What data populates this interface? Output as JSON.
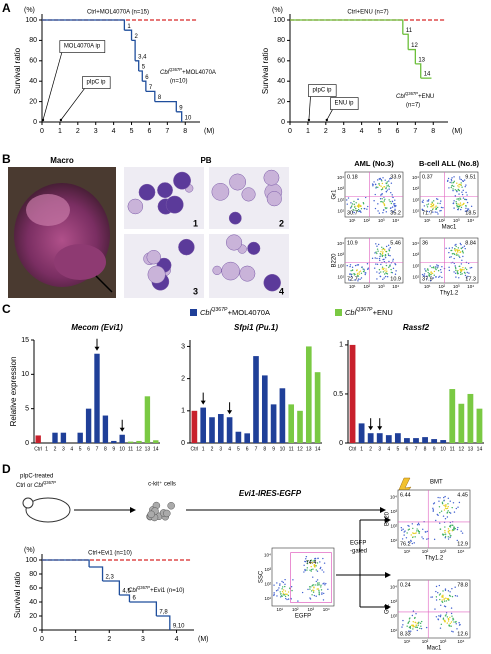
{
  "panel_labels": [
    "A",
    "B",
    "C",
    "D"
  ],
  "chart_data": [
    {
      "type": "survival",
      "yunit": "(%)",
      "ylabel": "Survival ratio",
      "xunit": "(M)",
      "xlim": [
        0,
        8.6
      ],
      "xticks": [
        0,
        1,
        2,
        3,
        4,
        5,
        6,
        7,
        8
      ],
      "ylim": [
        0,
        100
      ],
      "yticks": [
        0,
        20,
        40,
        60,
        80,
        100
      ],
      "series": [
        {
          "name": "Ctrl+MOL4070A (n=15)",
          "color": "#d62728",
          "dashed": true,
          "x": [
            0,
            8.6
          ],
          "values": [
            100,
            100
          ]
        },
        {
          "name": "CblQ367P+MOL4070A",
          "n_label": "(n=10)",
          "color": "#1f4e9c",
          "dashed": false,
          "x": [
            0,
            4.6,
            5.0,
            5.2,
            5.4,
            5.6,
            5.8,
            6.3,
            7.5,
            7.8
          ],
          "values": [
            100,
            90,
            80,
            60,
            50,
            40,
            30,
            20,
            10,
            0
          ],
          "step_labels": [
            "1",
            "2",
            "3,4",
            "5",
            "6",
            "7",
            "8",
            "9",
            "10"
          ]
        }
      ],
      "annotations": [
        {
          "text": "MOL4070A ip",
          "x": 0
        },
        {
          "text": "pIpC ip",
          "x": 1
        }
      ]
    },
    {
      "type": "survival",
      "yunit": "(%)",
      "ylabel": "Survival ratio",
      "xunit": "(M)",
      "xlim": [
        0,
        8.6
      ],
      "xticks": [
        0,
        1,
        2,
        3,
        4,
        5,
        6,
        7,
        8
      ],
      "ylim": [
        0,
        100
      ],
      "yticks": [
        0,
        20,
        40,
        60,
        80,
        100
      ],
      "series": [
        {
          "name": "Ctrl+ENU (n=7)",
          "color": "#d62728",
          "dashed": true,
          "x": [
            0,
            8.6
          ],
          "values": [
            100,
            100
          ]
        },
        {
          "name": "CblQ367P+ENU",
          "n_label": "(n=7)",
          "color": "#6cbf3a",
          "dashed": false,
          "x": [
            0,
            6.3,
            6.6,
            7.0,
            7.3,
            7.9
          ],
          "values": [
            100,
            86,
            71,
            57,
            43,
            43
          ],
          "step_labels": [
            "11",
            "12",
            "13",
            "14"
          ]
        }
      ],
      "annotations": [
        {
          "text": "pIpC ip",
          "x": 1
        },
        {
          "text": "ENU ip",
          "x": 2
        }
      ]
    },
    {
      "type": "bar",
      "title": "Mecom (Evi1)",
      "ylabel": "Relative expression",
      "categories": [
        "Ctrl",
        "1",
        "2",
        "3",
        "4",
        "5",
        "6",
        "7",
        "8",
        "9",
        "10",
        "11",
        "12",
        "13",
        "14"
      ],
      "values": [
        1.1,
        0,
        1.5,
        1.5,
        0,
        1.5,
        5,
        13,
        4,
        0.3,
        1.2,
        0.2,
        0.3,
        6.8,
        0.4
      ],
      "colors": [
        "#c8202c",
        "#1f3f98",
        "#1f3f98",
        "#1f3f98",
        "#1f3f98",
        "#1f3f98",
        "#1f3f98",
        "#1f3f98",
        "#1f3f98",
        "#1f3f98",
        "#1f3f98",
        "#7ac943",
        "#7ac943",
        "#7ac943",
        "#7ac943"
      ],
      "ylim": [
        0,
        15
      ],
      "yticks": [
        0,
        5,
        10,
        15
      ],
      "arrows": [
        7,
        10
      ]
    },
    {
      "type": "bar",
      "title": "Sfpi1 (Pu.1)",
      "categories": [
        "Ctrl",
        "1",
        "2",
        "3",
        "4",
        "5",
        "6",
        "7",
        "8",
        "9",
        "10",
        "11",
        "12",
        "13",
        "14"
      ],
      "values": [
        1.0,
        1.1,
        0.8,
        0.9,
        0.8,
        0.35,
        0.3,
        2.7,
        2.1,
        1.2,
        1.7,
        1.2,
        1.0,
        3.0,
        2.2
      ],
      "colors": [
        "#c8202c",
        "#1f3f98",
        "#1f3f98",
        "#1f3f98",
        "#1f3f98",
        "#1f3f98",
        "#1f3f98",
        "#1f3f98",
        "#1f3f98",
        "#1f3f98",
        "#1f3f98",
        "#7ac943",
        "#7ac943",
        "#7ac943",
        "#7ac943"
      ],
      "ylim": [
        0,
        3.2
      ],
      "yticks": [
        0,
        1,
        2,
        3
      ],
      "arrows": [
        1,
        4
      ]
    },
    {
      "type": "bar",
      "title": "Rassf2",
      "categories": [
        "Ctrl",
        "1",
        "2",
        "3",
        "4",
        "5",
        "6",
        "7",
        "8",
        "9",
        "10",
        "11",
        "12",
        "13",
        "14"
      ],
      "values": [
        1.0,
        0.2,
        0.1,
        0.1,
        0.08,
        0.1,
        0.05,
        0.05,
        0.06,
        0.04,
        0.03,
        0.55,
        0.4,
        0.5,
        0.35
      ],
      "colors": [
        "#c8202c",
        "#1f3f98",
        "#1f3f98",
        "#1f3f98",
        "#1f3f98",
        "#1f3f98",
        "#1f3f98",
        "#1f3f98",
        "#1f3f98",
        "#1f3f98",
        "#1f3f98",
        "#7ac943",
        "#7ac943",
        "#7ac943",
        "#7ac943"
      ],
      "ylim": [
        0,
        1.05
      ],
      "yticks": [
        0,
        0.5,
        1
      ],
      "arrows": [
        2,
        3
      ]
    },
    {
      "type": "survival",
      "yunit": "(%)",
      "ylabel": "Survival ratio",
      "xunit": "(M)",
      "xlim": [
        0,
        4.4
      ],
      "xticks": [
        0,
        1,
        2,
        3,
        4
      ],
      "ylim": [
        0,
        100
      ],
      "yticks": [
        0,
        20,
        40,
        60,
        80,
        100
      ],
      "series": [
        {
          "name": "Ctrl+Evi1 (n=10)",
          "color": "#d62728",
          "dashed": true,
          "x": [
            0,
            4.4
          ],
          "values": [
            100,
            100
          ]
        },
        {
          "name": "CblQ367P+Evi1 (n=10)",
          "color": "#1f4e9c",
          "dashed": false,
          "x": [
            0,
            1.4,
            1.8,
            2.3,
            2.6,
            3.4,
            3.8
          ],
          "values": [
            100,
            90,
            70,
            50,
            40,
            20,
            0
          ],
          "step_labels": [
            null,
            "2,3",
            "4,5",
            "6",
            "7,8",
            "9,10"
          ]
        }
      ],
      "annotations": []
    }
  ],
  "bar_legend": [
    {
      "name": "CblQ367P+MOL4070A",
      "color": "#1f3f98"
    },
    {
      "name": "CblQ367P+ENU",
      "color": "#7ac943"
    }
  ],
  "panel_b": {
    "macro": "Macro",
    "pb": "PB",
    "cell_labels": [
      "1",
      "2",
      "3",
      "4"
    ]
  },
  "flow_ticks": [
    "10¹",
    "10²",
    "10³",
    "10⁴"
  ],
  "flow_titles": [
    "AML (No.3)",
    "B-cell ALL (No.8)"
  ],
  "flow": [
    {
      "ylabel": "Gr1",
      "quadrants": [
        0.18,
        33.9,
        30.7,
        35.2
      ]
    },
    {
      "xlabel": "Mac1",
      "quadrants": [
        0.37,
        9.51,
        71.7,
        18.5
      ]
    },
    {
      "ylabel": "B220",
      "quadrants": [
        10.9,
        5.46,
        72.7,
        10.9
      ]
    },
    {
      "xlabel": "Thy1.2",
      "quadrants": [
        36,
        8.84,
        37.9,
        17.3
      ]
    },
    {
      "xlabel": "EGFP",
      "ylabel": "SSC",
      "gate": 74.4
    },
    {
      "xlabel": "Thy1.2",
      "ylabel": "B220",
      "quadrants": [
        6.44,
        4.45,
        76.2,
        12.9
      ]
    },
    {
      "xlabel": "Mac1",
      "ylabel": "Gr1",
      "quadrants": [
        0.24,
        78.8,
        8.33,
        12.6
      ]
    }
  ],
  "diagram": {
    "donor": [
      "pIpC-treated",
      "Ctrl or CblQ367P"
    ],
    "cells": "c-kit⁺ cells",
    "vector": "Evi1-IRES-EGFP",
    "transplant": "BMT",
    "gated": [
      "EGFP",
      "-gated"
    ]
  }
}
